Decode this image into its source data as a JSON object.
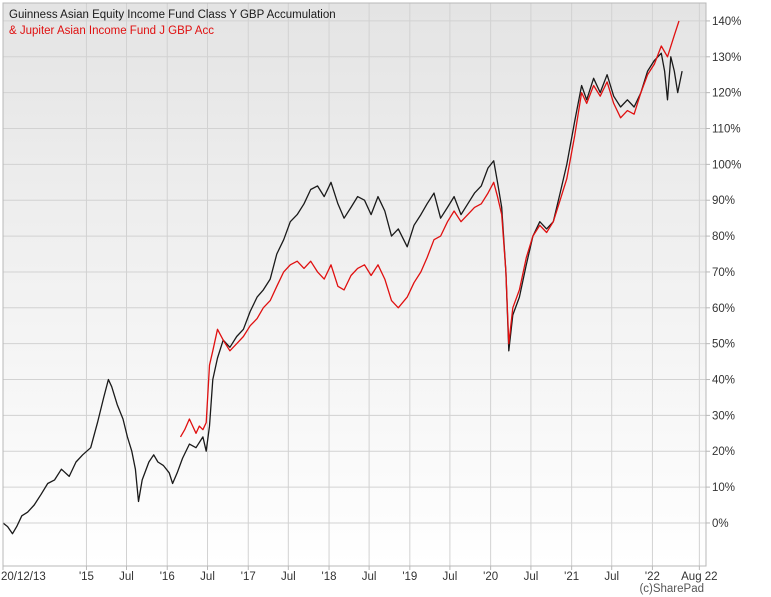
{
  "chart_data": {
    "type": "line",
    "y_unit": "%",
    "ylim": [
      -12,
      145
    ],
    "xlim": [
      "2013-12-20",
      "2022-08-31"
    ],
    "grid": true,
    "legend_placement": "top-left",
    "credit": "(c)SharePad",
    "y_ticks": [
      {
        "value": 0,
        "label": "0%"
      },
      {
        "value": 10,
        "label": "10%"
      },
      {
        "value": 20,
        "label": "20%"
      },
      {
        "value": 30,
        "label": "30%"
      },
      {
        "value": 40,
        "label": "40%"
      },
      {
        "value": 50,
        "label": "50%"
      },
      {
        "value": 60,
        "label": "60%"
      },
      {
        "value": 70,
        "label": "70%"
      },
      {
        "value": 80,
        "label": "80%"
      },
      {
        "value": 90,
        "label": "90%"
      },
      {
        "value": 100,
        "label": "100%"
      },
      {
        "value": 110,
        "label": "110%"
      },
      {
        "value": 120,
        "label": "120%"
      },
      {
        "value": 130,
        "label": "130%"
      },
      {
        "value": 140,
        "label": "140%"
      }
    ],
    "x_ticks": [
      {
        "date": "2013-12-20",
        "label": "20/12/13"
      },
      {
        "date": "2015-01-01",
        "label": "'15"
      },
      {
        "date": "2015-07-01",
        "label": "Jul"
      },
      {
        "date": "2016-01-01",
        "label": "'16"
      },
      {
        "date": "2016-07-01",
        "label": "Jul"
      },
      {
        "date": "2017-01-01",
        "label": "'17"
      },
      {
        "date": "2017-07-01",
        "label": "Jul"
      },
      {
        "date": "2018-01-01",
        "label": "'18"
      },
      {
        "date": "2018-07-01",
        "label": "Jul"
      },
      {
        "date": "2019-01-01",
        "label": "'19"
      },
      {
        "date": "2019-07-01",
        "label": "Jul"
      },
      {
        "date": "2020-01-01",
        "label": "'20"
      },
      {
        "date": "2020-07-01",
        "label": "Jul"
      },
      {
        "date": "2021-01-01",
        "label": "'21"
      },
      {
        "date": "2021-07-01",
        "label": "Jul"
      },
      {
        "date": "2022-01-01",
        "label": "'22"
      },
      {
        "date": "2022-08-01",
        "label": "Aug 22"
      }
    ],
    "series": [
      {
        "name": "Guinness Asian Equity Income Fund Class Y GBP Accumulation",
        "color": "#1a1a1a",
        "points": [
          [
            "2013-12-20",
            0
          ],
          [
            "2014-01-10",
            -1
          ],
          [
            "2014-02-01",
            -3
          ],
          [
            "2014-02-20",
            -1
          ],
          [
            "2014-03-15",
            2
          ],
          [
            "2014-04-10",
            3
          ],
          [
            "2014-05-10",
            5
          ],
          [
            "2014-06-10",
            8
          ],
          [
            "2014-07-10",
            11
          ],
          [
            "2014-08-10",
            12
          ],
          [
            "2014-09-10",
            15
          ],
          [
            "2014-10-15",
            13
          ],
          [
            "2014-11-15",
            17
          ],
          [
            "2014-12-15",
            19
          ],
          [
            "2015-01-20",
            21
          ],
          [
            "2015-02-20",
            28
          ],
          [
            "2015-03-20",
            35
          ],
          [
            "2015-04-10",
            40
          ],
          [
            "2015-04-25",
            38
          ],
          [
            "2015-05-20",
            33
          ],
          [
            "2015-06-15",
            29
          ],
          [
            "2015-07-05",
            24
          ],
          [
            "2015-07-25",
            20
          ],
          [
            "2015-08-10",
            15
          ],
          [
            "2015-08-24",
            6
          ],
          [
            "2015-09-10",
            12
          ],
          [
            "2015-10-10",
            17
          ],
          [
            "2015-11-01",
            19
          ],
          [
            "2015-11-20",
            17
          ],
          [
            "2015-12-15",
            16
          ],
          [
            "2016-01-10",
            14
          ],
          [
            "2016-01-25",
            11
          ],
          [
            "2016-02-15",
            14
          ],
          [
            "2016-03-10",
            18
          ],
          [
            "2016-04-10",
            22
          ],
          [
            "2016-05-10",
            21
          ],
          [
            "2016-06-10",
            24
          ],
          [
            "2016-06-25",
            20
          ],
          [
            "2016-07-10",
            27
          ],
          [
            "2016-07-25",
            40
          ],
          [
            "2016-08-15",
            46
          ],
          [
            "2016-09-10",
            51
          ],
          [
            "2016-10-10",
            49
          ],
          [
            "2016-11-10",
            52
          ],
          [
            "2016-12-10",
            54
          ],
          [
            "2017-01-10",
            59
          ],
          [
            "2017-02-10",
            63
          ],
          [
            "2017-03-10",
            65
          ],
          [
            "2017-04-10",
            68
          ],
          [
            "2017-05-10",
            75
          ],
          [
            "2017-06-10",
            79
          ],
          [
            "2017-07-10",
            84
          ],
          [
            "2017-08-10",
            86
          ],
          [
            "2017-09-10",
            89
          ],
          [
            "2017-10-10",
            93
          ],
          [
            "2017-11-10",
            94
          ],
          [
            "2017-12-10",
            91
          ],
          [
            "2018-01-10",
            95
          ],
          [
            "2018-02-10",
            89
          ],
          [
            "2018-03-10",
            85
          ],
          [
            "2018-04-10",
            88
          ],
          [
            "2018-05-10",
            91
          ],
          [
            "2018-06-10",
            90
          ],
          [
            "2018-07-10",
            86
          ],
          [
            "2018-08-10",
            91
          ],
          [
            "2018-09-10",
            87
          ],
          [
            "2018-10-10",
            80
          ],
          [
            "2018-11-10",
            82
          ],
          [
            "2018-12-20",
            77
          ],
          [
            "2019-01-20",
            83
          ],
          [
            "2019-02-20",
            86
          ],
          [
            "2019-03-20",
            89
          ],
          [
            "2019-04-20",
            92
          ],
          [
            "2019-05-20",
            85
          ],
          [
            "2019-06-20",
            88
          ],
          [
            "2019-07-20",
            91
          ],
          [
            "2019-08-20",
            86
          ],
          [
            "2019-09-20",
            89
          ],
          [
            "2019-10-20",
            92
          ],
          [
            "2019-11-20",
            94
          ],
          [
            "2019-12-20",
            99
          ],
          [
            "2020-01-15",
            101
          ],
          [
            "2020-02-01",
            95
          ],
          [
            "2020-02-20",
            88
          ],
          [
            "2020-03-10",
            70
          ],
          [
            "2020-03-23",
            48
          ],
          [
            "2020-04-10",
            58
          ],
          [
            "2020-05-10",
            63
          ],
          [
            "2020-06-10",
            72
          ],
          [
            "2020-07-10",
            80
          ],
          [
            "2020-08-10",
            84
          ],
          [
            "2020-09-10",
            82
          ],
          [
            "2020-10-10",
            84
          ],
          [
            "2020-11-10",
            92
          ],
          [
            "2020-12-10",
            100
          ],
          [
            "2021-01-15",
            112
          ],
          [
            "2021-02-15",
            122
          ],
          [
            "2021-03-10",
            118
          ],
          [
            "2021-04-10",
            124
          ],
          [
            "2021-05-10",
            120
          ],
          [
            "2021-06-10",
            125
          ],
          [
            "2021-07-10",
            119
          ],
          [
            "2021-08-10",
            116
          ],
          [
            "2021-09-10",
            118
          ],
          [
            "2021-10-10",
            116
          ],
          [
            "2021-11-10",
            120
          ],
          [
            "2021-12-10",
            126
          ],
          [
            "2022-01-10",
            129
          ],
          [
            "2022-02-10",
            131
          ],
          [
            "2022-02-25",
            126
          ],
          [
            "2022-03-10",
            118
          ],
          [
            "2022-03-25",
            130
          ],
          [
            "2022-04-10",
            126
          ],
          [
            "2022-04-25",
            120
          ],
          [
            "2022-05-15",
            126
          ]
        ]
      },
      {
        "name": "& Jupiter Asian Income Fund J GBP Acc",
        "color": "#e01010",
        "points": [
          [
            "2016-03-01",
            24
          ],
          [
            "2016-03-20",
            26
          ],
          [
            "2016-04-10",
            29
          ],
          [
            "2016-04-25",
            27
          ],
          [
            "2016-05-10",
            25
          ],
          [
            "2016-05-25",
            27
          ],
          [
            "2016-06-10",
            26
          ],
          [
            "2016-06-25",
            28
          ],
          [
            "2016-07-10",
            44
          ],
          [
            "2016-07-25",
            48
          ],
          [
            "2016-08-15",
            54
          ],
          [
            "2016-09-10",
            51
          ],
          [
            "2016-10-10",
            48
          ],
          [
            "2016-11-10",
            50
          ],
          [
            "2016-12-10",
            52
          ],
          [
            "2017-01-10",
            55
          ],
          [
            "2017-02-10",
            57
          ],
          [
            "2017-03-10",
            60
          ],
          [
            "2017-04-10",
            62
          ],
          [
            "2017-05-10",
            66
          ],
          [
            "2017-06-10",
            70
          ],
          [
            "2017-07-10",
            72
          ],
          [
            "2017-08-10",
            73
          ],
          [
            "2017-09-10",
            71
          ],
          [
            "2017-10-10",
            73
          ],
          [
            "2017-11-10",
            70
          ],
          [
            "2017-12-10",
            68
          ],
          [
            "2018-01-10",
            72
          ],
          [
            "2018-02-10",
            66
          ],
          [
            "2018-03-10",
            65
          ],
          [
            "2018-04-10",
            69
          ],
          [
            "2018-05-10",
            71
          ],
          [
            "2018-06-10",
            72
          ],
          [
            "2018-07-10",
            69
          ],
          [
            "2018-08-10",
            72
          ],
          [
            "2018-09-10",
            68
          ],
          [
            "2018-10-10",
            62
          ],
          [
            "2018-11-10",
            60
          ],
          [
            "2018-12-20",
            63
          ],
          [
            "2019-01-20",
            67
          ],
          [
            "2019-02-20",
            70
          ],
          [
            "2019-03-20",
            74
          ],
          [
            "2019-04-20",
            79
          ],
          [
            "2019-05-20",
            80
          ],
          [
            "2019-06-20",
            84
          ],
          [
            "2019-07-20",
            87
          ],
          [
            "2019-08-20",
            84
          ],
          [
            "2019-09-20",
            86
          ],
          [
            "2019-10-20",
            88
          ],
          [
            "2019-11-20",
            89
          ],
          [
            "2019-12-20",
            92
          ],
          [
            "2020-01-15",
            95
          ],
          [
            "2020-02-01",
            91
          ],
          [
            "2020-02-20",
            86
          ],
          [
            "2020-03-10",
            70
          ],
          [
            "2020-03-23",
            50
          ],
          [
            "2020-04-10",
            60
          ],
          [
            "2020-05-10",
            65
          ],
          [
            "2020-06-10",
            74
          ],
          [
            "2020-07-10",
            80
          ],
          [
            "2020-08-10",
            83
          ],
          [
            "2020-09-10",
            81
          ],
          [
            "2020-10-10",
            84
          ],
          [
            "2020-11-10",
            90
          ],
          [
            "2020-12-10",
            96
          ],
          [
            "2021-01-15",
            108
          ],
          [
            "2021-02-15",
            120
          ],
          [
            "2021-03-10",
            117
          ],
          [
            "2021-04-10",
            122
          ],
          [
            "2021-05-10",
            119
          ],
          [
            "2021-06-10",
            123
          ],
          [
            "2021-07-10",
            117
          ],
          [
            "2021-08-10",
            113
          ],
          [
            "2021-09-10",
            115
          ],
          [
            "2021-10-10",
            114
          ],
          [
            "2021-11-10",
            120
          ],
          [
            "2021-12-10",
            125
          ],
          [
            "2022-01-10",
            128
          ],
          [
            "2022-02-10",
            133
          ],
          [
            "2022-03-10",
            130
          ],
          [
            "2022-04-10",
            136
          ],
          [
            "2022-05-01",
            140
          ]
        ]
      }
    ]
  }
}
